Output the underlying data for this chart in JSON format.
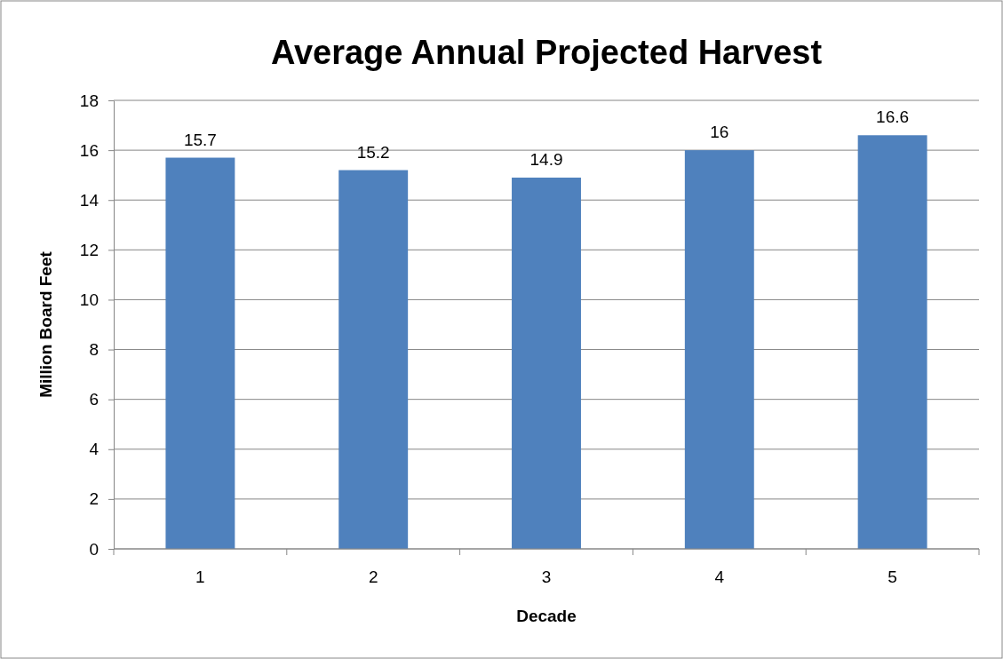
{
  "chart_data": {
    "type": "bar",
    "title": "Average Annual Projected Harvest",
    "xlabel": "Decade",
    "ylabel": "Million Board Feet",
    "categories": [
      "1",
      "2",
      "3",
      "4",
      "5"
    ],
    "values": [
      15.7,
      15.2,
      14.9,
      16,
      16.6
    ],
    "color": "#4f81bd",
    "ylim": [
      0,
      18
    ],
    "yticks": [
      0,
      2,
      4,
      6,
      8,
      10,
      12,
      14,
      16,
      18
    ],
    "grid": "y",
    "data_labels": true
  }
}
